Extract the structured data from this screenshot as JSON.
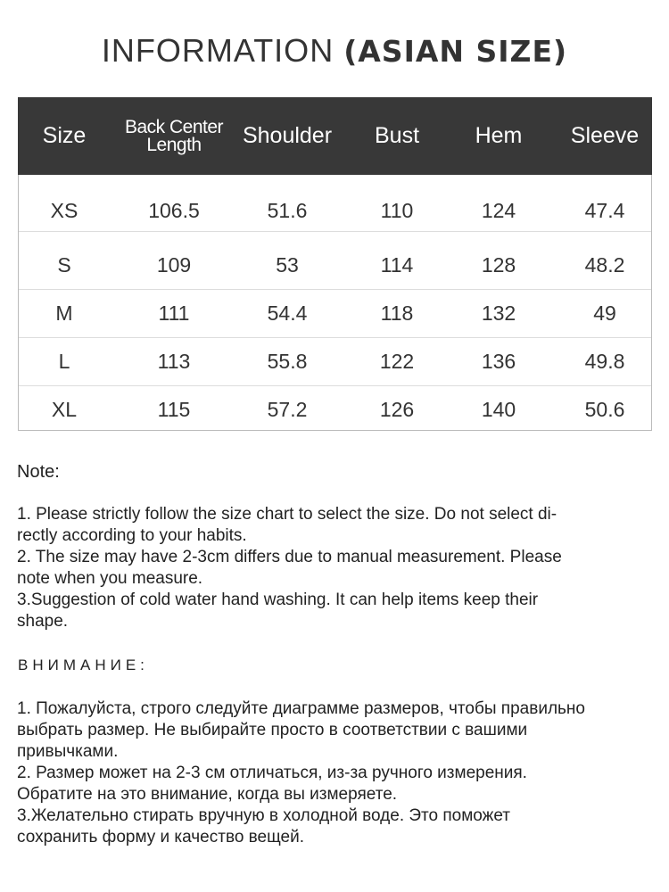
{
  "title": {
    "light": "INFORMATION ",
    "bold": "(ASIAN SIZE)"
  },
  "table": {
    "headers": [
      "Size",
      "Back Center Length",
      "Shoulder",
      "Bust",
      "Hem",
      "Sleeve"
    ],
    "rows": [
      [
        "XS",
        "106.5",
        "51.6",
        "110",
        "124",
        "47.4"
      ],
      [
        "S",
        "109",
        "53",
        "114",
        "128",
        "48.2"
      ],
      [
        "M",
        "111",
        "54.4",
        "118",
        "132",
        "49"
      ],
      [
        "L",
        "113",
        "55.8",
        "122",
        "136",
        "49.8"
      ],
      [
        "XL",
        "115",
        "57.2",
        "126",
        "140",
        "50.6"
      ]
    ]
  },
  "note": {
    "heading": "Note:",
    "lines": [
      "1. Please strictly follow the size chart  to select the size. Do not select di-",
      "rectly according to your habits.",
      "2. The size may have 2-3cm differs due to manual measurement. Please",
      "note when you measure.",
      "3.Suggestion of cold water hand washing. It can help items keep their",
      "shape."
    ]
  },
  "note_ru": {
    "heading": "ВНИМАНИЕ:",
    "lines": [
      "1. Пожалуйста, строго следуйте диаграмме размеров, чтобы правильно",
      "выбрать размер. Не выбирайте просто в соответствии с вашими",
      "привычками.",
      "2. Размер может на 2-3 см отличаться, из-за ручного измерения.",
      "Обратите на это внимание, когда вы измеряете.",
      "3.Желательно стирать вручную в холодной воде. Это поможет",
      "сохранить форму и качество вещей."
    ]
  },
  "colors": {
    "header_bg": "#383838",
    "header_text": "#ffffff"
  }
}
